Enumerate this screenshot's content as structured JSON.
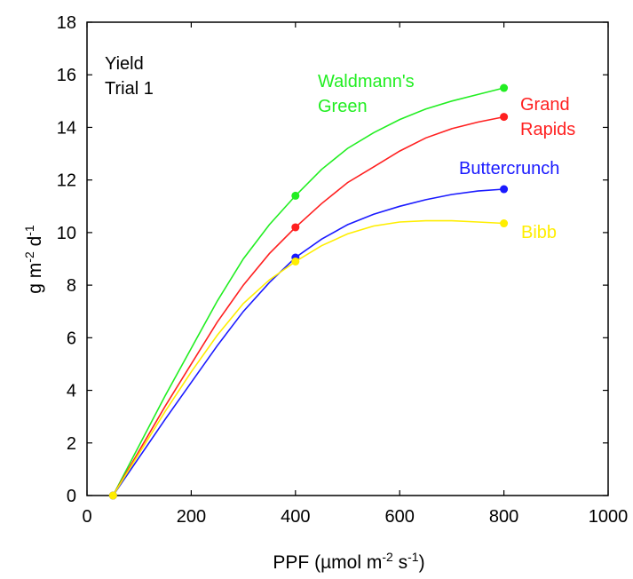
{
  "chart_data": {
    "type": "line",
    "xlabel": "PPF (µmol m-2 s-1)",
    "ylabel": "g m-2 d-1",
    "xlim": [
      0,
      1000
    ],
    "ylim": [
      0,
      18
    ],
    "xticks": [
      0,
      200,
      400,
      600,
      800,
      1000
    ],
    "yticks": [
      0,
      2,
      4,
      6,
      8,
      10,
      12,
      14,
      16,
      18
    ],
    "grid": false,
    "series": [
      {
        "name": "Waldmann's Green",
        "color": "#22ee22",
        "points": [
          [
            50,
            0
          ],
          [
            400,
            11.4
          ],
          [
            800,
            15.5
          ]
        ],
        "curve": [
          [
            50,
            0
          ],
          [
            100,
            1.9
          ],
          [
            150,
            3.8
          ],
          [
            200,
            5.6
          ],
          [
            250,
            7.4
          ],
          [
            300,
            9.0
          ],
          [
            350,
            10.3
          ],
          [
            400,
            11.4
          ],
          [
            450,
            12.4
          ],
          [
            500,
            13.2
          ],
          [
            550,
            13.8
          ],
          [
            600,
            14.3
          ],
          [
            650,
            14.7
          ],
          [
            700,
            15.0
          ],
          [
            750,
            15.25
          ],
          [
            800,
            15.5
          ]
        ]
      },
      {
        "name": "Grand Rapids",
        "color": "#ff2020",
        "points": [
          [
            50,
            0
          ],
          [
            400,
            10.2
          ],
          [
            800,
            14.4
          ]
        ],
        "curve": [
          [
            50,
            0
          ],
          [
            100,
            1.7
          ],
          [
            150,
            3.4
          ],
          [
            200,
            5.0
          ],
          [
            250,
            6.6
          ],
          [
            300,
            8.0
          ],
          [
            350,
            9.2
          ],
          [
            400,
            10.2
          ],
          [
            450,
            11.1
          ],
          [
            500,
            11.9
          ],
          [
            550,
            12.5
          ],
          [
            600,
            13.1
          ],
          [
            650,
            13.6
          ],
          [
            700,
            13.95
          ],
          [
            750,
            14.2
          ],
          [
            800,
            14.4
          ]
        ]
      },
      {
        "name": "Buttercrunch",
        "color": "#1a1aff",
        "points": [
          [
            50,
            0
          ],
          [
            400,
            9.05
          ],
          [
            800,
            11.65
          ]
        ],
        "curve": [
          [
            50,
            0
          ],
          [
            100,
            1.45
          ],
          [
            150,
            2.9
          ],
          [
            200,
            4.3
          ],
          [
            250,
            5.7
          ],
          [
            300,
            7.0
          ],
          [
            350,
            8.1
          ],
          [
            400,
            9.05
          ],
          [
            450,
            9.75
          ],
          [
            500,
            10.3
          ],
          [
            550,
            10.7
          ],
          [
            600,
            11.0
          ],
          [
            650,
            11.25
          ],
          [
            700,
            11.45
          ],
          [
            750,
            11.58
          ],
          [
            800,
            11.65
          ]
        ]
      },
      {
        "name": "Bibb",
        "color": "#ffee00",
        "points": [
          [
            50,
            0
          ],
          [
            400,
            8.9
          ],
          [
            800,
            10.35
          ]
        ],
        "curve": [
          [
            50,
            0
          ],
          [
            100,
            1.6
          ],
          [
            150,
            3.2
          ],
          [
            200,
            4.7
          ],
          [
            250,
            6.1
          ],
          [
            300,
            7.3
          ],
          [
            350,
            8.2
          ],
          [
            400,
            8.9
          ],
          [
            450,
            9.5
          ],
          [
            500,
            9.95
          ],
          [
            550,
            10.25
          ],
          [
            600,
            10.4
          ],
          [
            650,
            10.45
          ],
          [
            700,
            10.45
          ],
          [
            750,
            10.4
          ],
          [
            800,
            10.35
          ]
        ]
      }
    ],
    "annotations": {
      "trial_line1": "Yield",
      "trial_line2": "Trial 1",
      "waldmann_line1": "Waldmann's",
      "waldmann_line2": "Green",
      "grand_line1": "Grand",
      "grand_line2": "Rapids",
      "buttercrunch": "Buttercrunch",
      "bibb": "Bibb"
    }
  }
}
